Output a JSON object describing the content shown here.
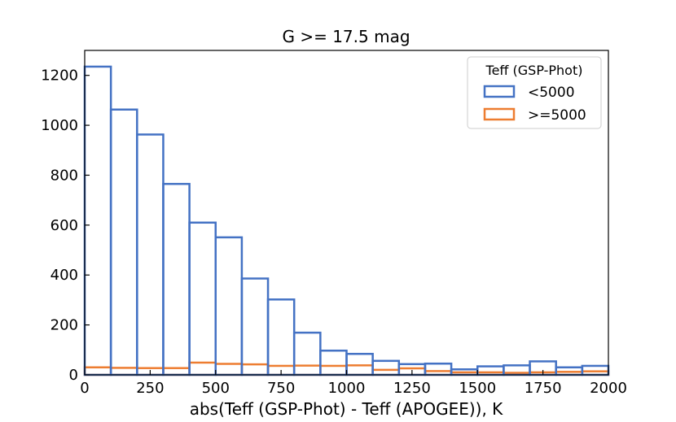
{
  "chart_data": {
    "type": "histogram",
    "title": "G >= 17.5 mag",
    "xlabel": "abs(Teff (GSP-Phot) - Teff (APOGEE)), K",
    "ylabel": "",
    "xlim": [
      0,
      2000
    ],
    "ylim": [
      0,
      1300
    ],
    "bin_edges": [
      0,
      100,
      200,
      300,
      400,
      500,
      600,
      700,
      800,
      900,
      1000,
      1100,
      1200,
      1300,
      1400,
      1500,
      1600,
      1700,
      1800,
      1900,
      2000
    ],
    "x_ticks": [
      0,
      250,
      500,
      750,
      1000,
      1250,
      1500,
      1750,
      2000
    ],
    "y_ticks": [
      0,
      200,
      400,
      600,
      800,
      1000,
      1200
    ],
    "legend": {
      "title": "Teff (GSP-Phot)",
      "placement": "top-right"
    },
    "series": [
      {
        "name": "<5000",
        "color": "#4472c4",
        "values": [
          1235,
          1063,
          963,
          765,
          610,
          551,
          386,
          302,
          169,
          97,
          84,
          56,
          43,
          45,
          22,
          34,
          38,
          54,
          30,
          36
        ]
      },
      {
        "name": ">=5000",
        "color": "#ed7d31",
        "values": [
          30,
          28,
          27,
          27,
          49,
          44,
          42,
          36,
          37,
          36,
          38,
          20,
          26,
          15,
          10,
          10,
          8,
          10,
          12,
          14
        ]
      }
    ]
  }
}
